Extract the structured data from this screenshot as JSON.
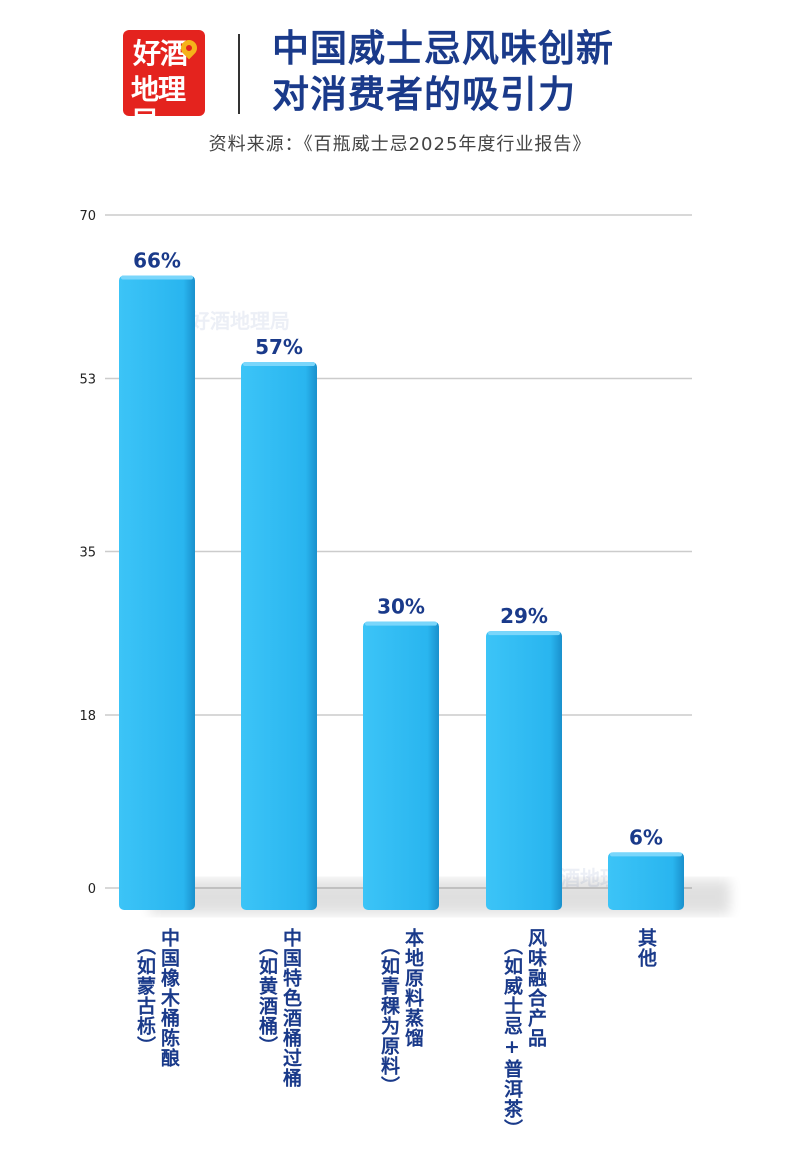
{
  "header": {
    "logo_line1": "好酒",
    "logo_line2": "地理局",
    "title_line1": "中国威士忌风味创新",
    "title_line2": "对消费者的吸引力",
    "source": "资料来源：《百瓶威士忌2025年度行业报告》"
  },
  "watermark": "好酒地理局",
  "colors": {
    "bar": "#29b5ef",
    "bar_dark": "#1892cf",
    "label": "#1a3a8a",
    "grid": "#cccccc"
  },
  "chart_data": {
    "type": "bar",
    "categories": [
      [
        "中国橡木桶陈酿",
        "（如蒙古栎）"
      ],
      [
        "中国特色酒桶过桶",
        "（如黄酒桶）"
      ],
      [
        "本地原料蒸馏",
        "（如青稞为原料）"
      ],
      [
        "风味融合产品",
        "（如威士忌+普洱茶）"
      ],
      [
        "其他"
      ]
    ],
    "values": [
      66,
      57,
      30,
      29,
      6
    ],
    "data_labels": [
      "66%",
      "57%",
      "30%",
      "29%",
      "6%"
    ],
    "yticks": [
      0,
      18,
      35,
      53,
      70
    ],
    "ylim": [
      0,
      70
    ],
    "grid": true,
    "title": "中国威士忌风味创新对消费者的吸引力",
    "xlabel": "",
    "ylabel": ""
  }
}
